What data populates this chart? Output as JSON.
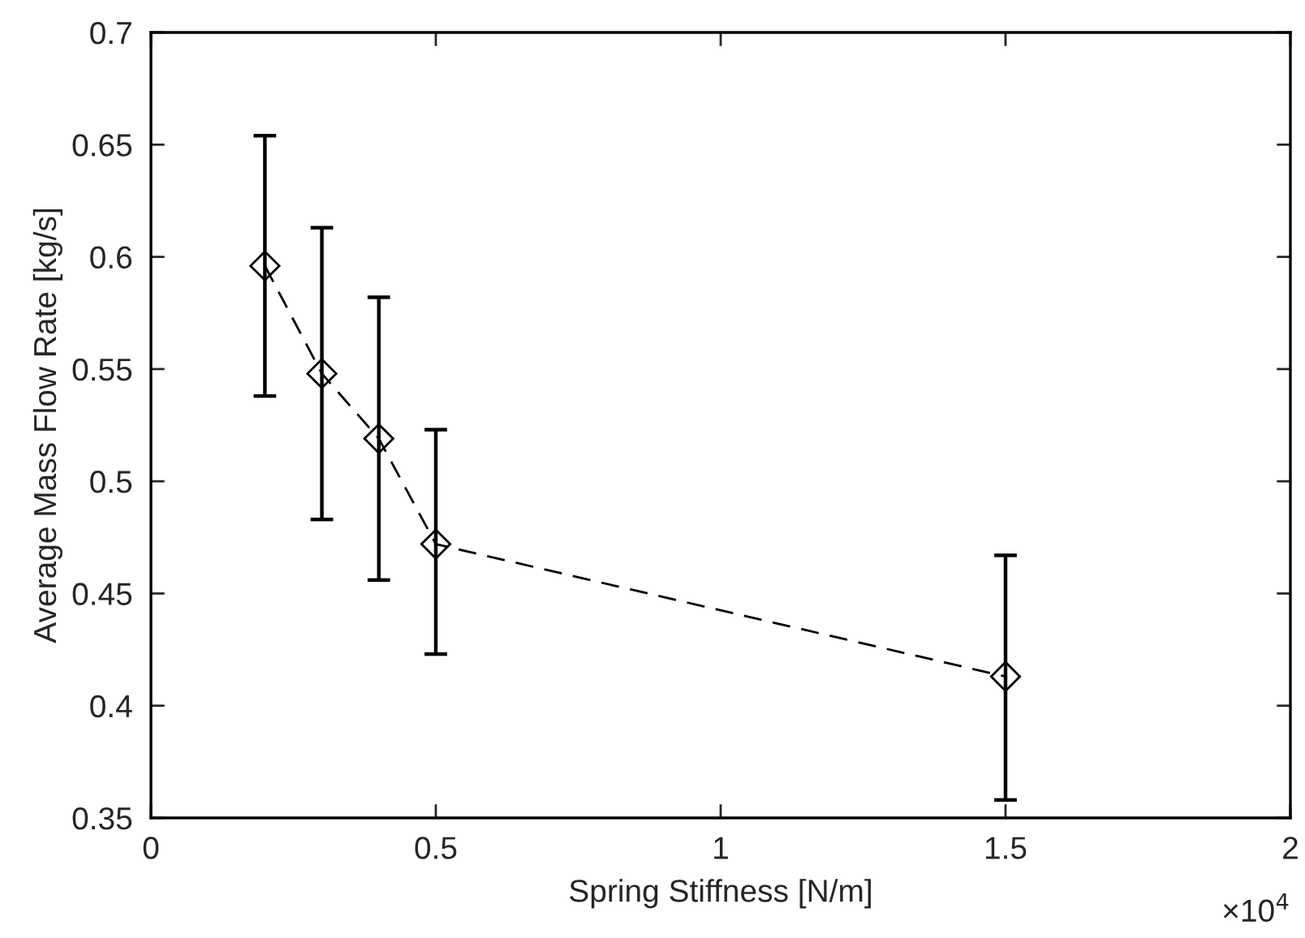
{
  "chart_data": {
    "type": "line",
    "xlabel": "Spring Stiffness [N/m]",
    "ylabel": "Average Mass Flow Rate [kg/s]",
    "x": [
      0.2,
      0.3,
      0.4,
      0.5,
      1.5
    ],
    "series": [
      {
        "color": "#000000",
        "values": [
          0.596,
          0.548,
          0.519,
          0.472,
          0.413
        ],
        "errors": [
          [
            0.538,
            0.654
          ],
          [
            0.483,
            0.613
          ],
          [
            0.456,
            0.582
          ],
          [
            0.423,
            0.523
          ],
          [
            0.358,
            0.467
          ]
        ]
      }
    ],
    "marker": "diamond",
    "line_style": "dashed",
    "grid": false,
    "legend": false,
    "xlim": [
      0,
      2
    ],
    "xticks": [
      0,
      0.5,
      1,
      1.5,
      2
    ],
    "ylim": [
      0.35,
      0.7
    ],
    "yticks": [
      0.35,
      0.4,
      0.45,
      0.5,
      0.55,
      0.6,
      0.65,
      0.7
    ],
    "annotations": [
      "×10$^{4}$"
    ]
  }
}
